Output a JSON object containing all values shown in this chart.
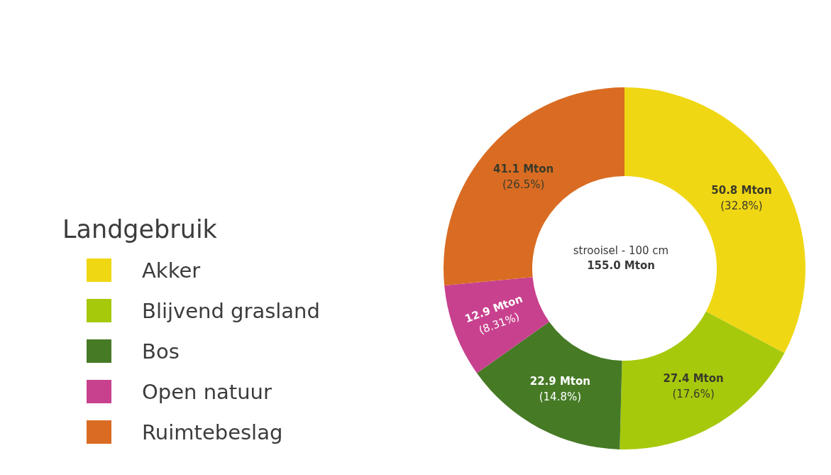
{
  "chart_data": {
    "type": "donut",
    "categories": [
      "Akker",
      "Blijvend grasland",
      "Bos",
      "Open natuur",
      "Ruimtebeslag"
    ],
    "values": [
      50.8,
      27.4,
      22.9,
      12.9,
      41.1
    ],
    "colors": [
      "#f0d714",
      "#a6c90c",
      "#467a25",
      "#c8418e",
      "#d96c22"
    ],
    "value_labels": [
      "50.8 Mton\n(32.8%)",
      "27.4 Mton\n(17.6%)",
      "22.9 Mton\n(14.8%)",
      "12.9 Mton\n(8.31%)",
      "41.1 Mton\n(26.5%)"
    ],
    "legend_title": "Landgebruik",
    "legend": "left",
    "annotations": [
      "strooisel - 100 cm",
      "155.0 Mton"
    ]
  }
}
